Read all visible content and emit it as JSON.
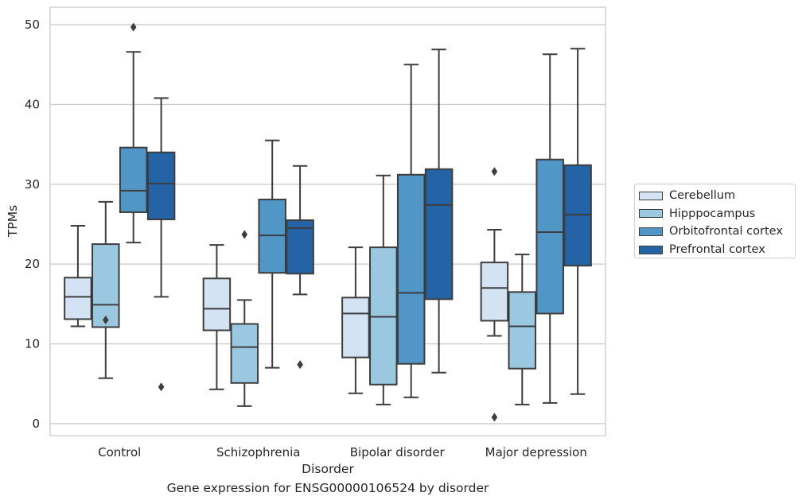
{
  "chart_data": {
    "type": "box",
    "title": "",
    "caption": "Gene expression for ENSG00000106524 by disorder",
    "xlabel": "Disorder",
    "ylabel": "TPMs",
    "ylim": [
      -1.5,
      52.2
    ],
    "yticks": [
      0,
      10,
      20,
      30,
      40,
      50
    ],
    "grid": "horizontal",
    "legend_position": "right",
    "categories": [
      "Control",
      "Schizophrenia",
      "Bipolar disorder",
      "Major depression"
    ],
    "series": [
      {
        "name": "Cerebellum",
        "color": "#d3e3f3",
        "boxes": [
          {
            "whisker_low": 12.2,
            "q1": 13.1,
            "median": 15.9,
            "q3": 18.3,
            "whisker_high": 24.8,
            "outliers": []
          },
          {
            "whisker_low": 4.3,
            "q1": 11.7,
            "median": 14.4,
            "q3": 18.2,
            "whisker_high": 22.4,
            "outliers": []
          },
          {
            "whisker_low": 3.8,
            "q1": 8.3,
            "median": 13.8,
            "q3": 15.8,
            "whisker_high": 22.1,
            "outliers": []
          },
          {
            "whisker_low": 11.0,
            "q1": 12.9,
            "median": 17.0,
            "q3": 20.2,
            "whisker_high": 24.3,
            "outliers": [
              0.8,
              31.6
            ]
          }
        ]
      },
      {
        "name": "Hipppocampus",
        "color": "#9ac8e0",
        "boxes": [
          {
            "whisker_low": 5.7,
            "q1": 12.1,
            "median": 14.9,
            "q3": 22.5,
            "whisker_high": 27.8,
            "outliers": [
              13.0
            ]
          },
          {
            "whisker_low": 2.2,
            "q1": 5.1,
            "median": 9.6,
            "q3": 12.5,
            "whisker_high": 15.5,
            "outliers": [
              23.7
            ]
          },
          {
            "whisker_low": 2.4,
            "q1": 4.9,
            "median": 13.4,
            "q3": 22.1,
            "whisker_high": 31.1,
            "outliers": []
          },
          {
            "whisker_low": 2.4,
            "q1": 6.9,
            "median": 12.2,
            "q3": 16.5,
            "whisker_high": 21.2,
            "outliers": []
          }
        ]
      },
      {
        "name": "Orbitofrontal cortex",
        "color": "#5097c8",
        "boxes": [
          {
            "whisker_low": 22.7,
            "q1": 26.5,
            "median": 29.2,
            "q3": 34.6,
            "whisker_high": 46.6,
            "outliers": [
              49.7
            ]
          },
          {
            "whisker_low": 7.0,
            "q1": 18.9,
            "median": 23.6,
            "q3": 28.1,
            "whisker_high": 35.5,
            "outliers": []
          },
          {
            "whisker_low": 3.3,
            "q1": 7.5,
            "median": 16.4,
            "q3": 31.2,
            "whisker_high": 45.0,
            "outliers": []
          },
          {
            "whisker_low": 2.6,
            "q1": 13.8,
            "median": 24.0,
            "q3": 33.1,
            "whisker_high": 46.3,
            "outliers": []
          }
        ]
      },
      {
        "name": "Prefrontal cortex",
        "color": "#2464a6",
        "boxes": [
          {
            "whisker_low": 15.9,
            "q1": 25.6,
            "median": 30.1,
            "q3": 34.0,
            "whisker_high": 40.8,
            "outliers": [
              4.6
            ]
          },
          {
            "whisker_low": 16.2,
            "q1": 18.8,
            "median": 24.5,
            "q3": 25.5,
            "whisker_high": 32.3,
            "outliers": [
              7.4
            ]
          },
          {
            "whisker_low": 6.4,
            "q1": 15.6,
            "median": 27.4,
            "q3": 31.9,
            "whisker_high": 46.9,
            "outliers": []
          },
          {
            "whisker_low": 3.7,
            "q1": 19.8,
            "median": 26.2,
            "q3": 32.4,
            "whisker_high": 47.0,
            "outliers": []
          }
        ]
      }
    ]
  }
}
